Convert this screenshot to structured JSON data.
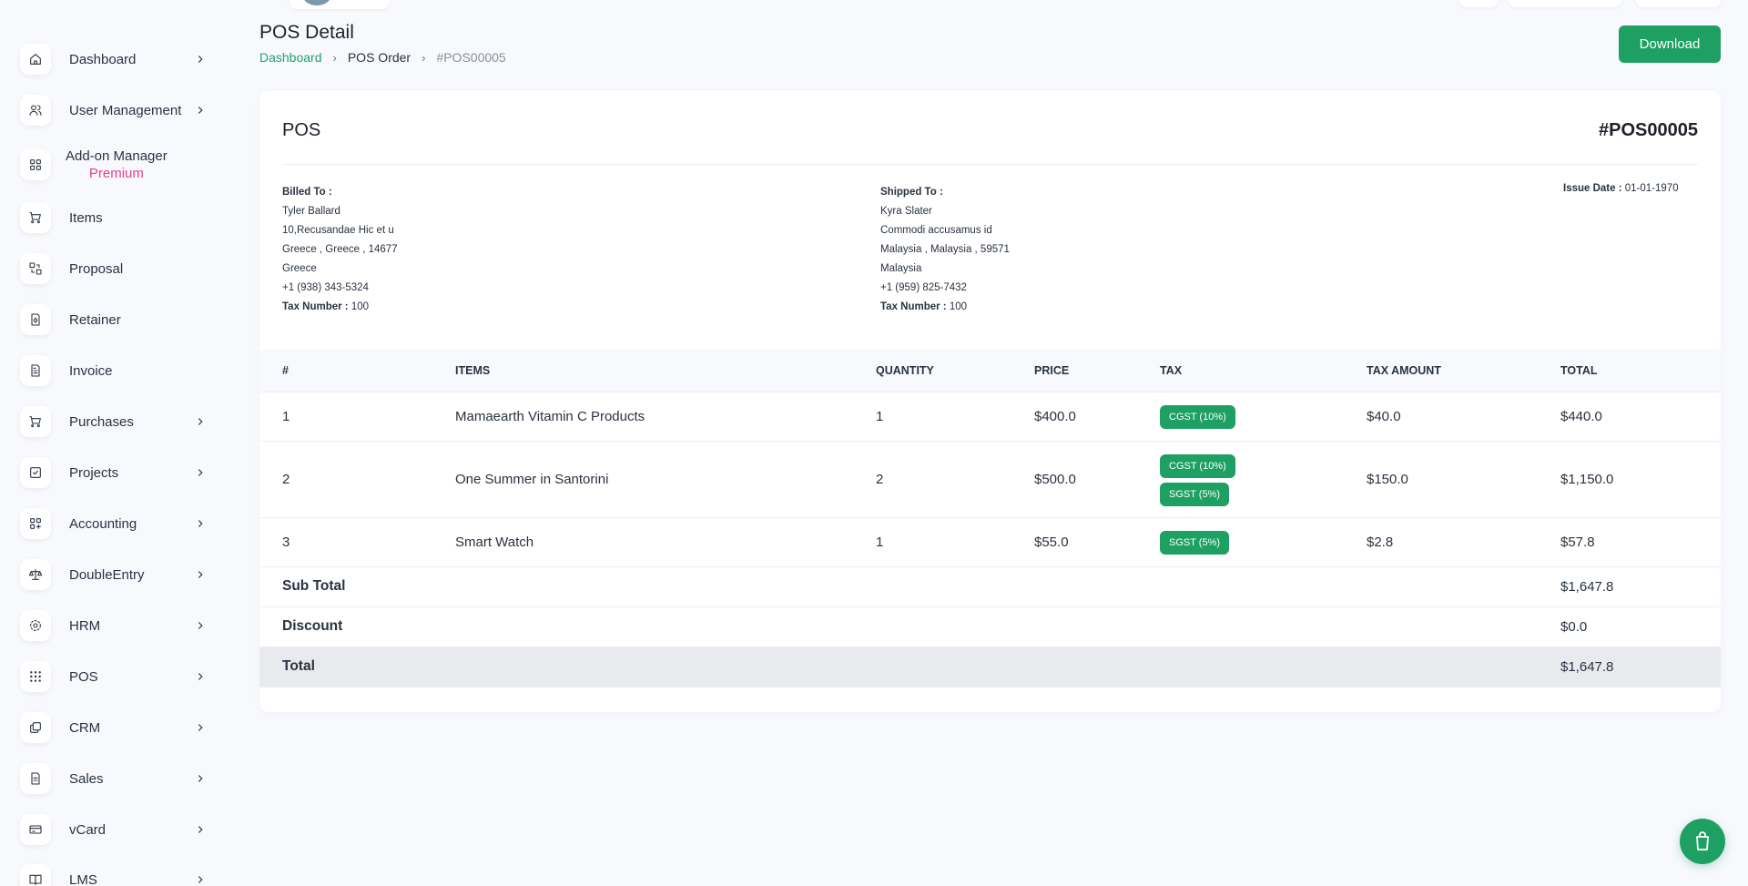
{
  "sidebar": {
    "items": [
      {
        "label": "Dashboard",
        "icon": "home-icon",
        "has_chevron": true
      },
      {
        "label": "User Management",
        "icon": "users-icon",
        "has_chevron": true
      },
      {
        "label": "Add-on Manager",
        "sublabel": "Premium",
        "icon": "apps-icon",
        "has_chevron": false
      },
      {
        "label": "Items",
        "icon": "cart-icon",
        "has_chevron": false
      },
      {
        "label": "Proposal",
        "icon": "proposal-icon",
        "has_chevron": false
      },
      {
        "label": "Retainer",
        "icon": "retainer-icon",
        "has_chevron": false
      },
      {
        "label": "Invoice",
        "icon": "invoice-icon",
        "has_chevron": false
      },
      {
        "label": "Purchases",
        "icon": "cart-icon",
        "has_chevron": true
      },
      {
        "label": "Projects",
        "icon": "checkbox-icon",
        "has_chevron": true
      },
      {
        "label": "Accounting",
        "icon": "apps-plus-icon",
        "has_chevron": true
      },
      {
        "label": "DoubleEntry",
        "icon": "scale-icon",
        "has_chevron": true
      },
      {
        "label": "HRM",
        "icon": "hrm-icon",
        "has_chevron": true
      },
      {
        "label": "POS",
        "icon": "grid-dots-icon",
        "has_chevron": true
      },
      {
        "label": "CRM",
        "icon": "layers-icon",
        "has_chevron": true
      },
      {
        "label": "Sales",
        "icon": "file-icon",
        "has_chevron": true
      },
      {
        "label": "vCard",
        "icon": "card-icon",
        "has_chevron": true
      },
      {
        "label": "LMS",
        "icon": "book-icon",
        "has_chevron": true
      }
    ]
  },
  "page": {
    "title": "POS Detail",
    "breadcrumb": {
      "home": "Dashboard",
      "mid": "POS Order",
      "current": "#POS00005"
    },
    "download_label": "Download"
  },
  "invoice": {
    "title": "POS",
    "number": "#POS00005",
    "billed": {
      "label": "Billed To :",
      "name": "Tyler Ballard",
      "address": "10,Recusandae Hic et u",
      "city_line": "Greece , Greece , 14677",
      "country": "Greece",
      "phone": "+1 (938) 343-5324",
      "tax_label": "Tax Number :",
      "tax_value": "100"
    },
    "shipped": {
      "label": "Shipped To :",
      "name": "Kyra Slater",
      "address": "Commodi accusamus id",
      "city_line": "Malaysia , Malaysia , 59571",
      "country": "Malaysia",
      "phone": "+1 (959) 825-7432",
      "tax_label": "Tax Number :",
      "tax_value": "100"
    },
    "issue_label": "Issue Date :",
    "issue_value": "01-01-1970"
  },
  "table": {
    "headers": {
      "num": "#",
      "items": "ITEMS",
      "qty": "QUANTITY",
      "price": "PRICE",
      "tax": "TAX",
      "tax_amount": "TAX AMOUNT",
      "total": "TOTAL"
    },
    "rows": [
      {
        "num": "1",
        "item": "Mamaearth Vitamin C Products",
        "qty": "1",
        "price": "$400.0",
        "taxes": [
          "CGST (10%)"
        ],
        "tax_amount": "$40.0",
        "total": "$440.0"
      },
      {
        "num": "2",
        "item": "One Summer in Santorini",
        "qty": "2",
        "price": "$500.0",
        "taxes": [
          "CGST (10%)",
          "SGST (5%)"
        ],
        "tax_amount": "$150.0",
        "total": "$1,150.0"
      },
      {
        "num": "3",
        "item": "Smart Watch",
        "qty": "1",
        "price": "$55.0",
        "taxes": [
          "SGST (5%)"
        ],
        "tax_amount": "$2.8",
        "total": "$57.8"
      }
    ],
    "summary": [
      {
        "label": "Sub Total",
        "value": "$1,647.8"
      },
      {
        "label": "Discount",
        "value": "$0.0"
      },
      {
        "label": "Total",
        "value": "$1,647.8"
      }
    ]
  },
  "colors": {
    "accent": "#1fa063",
    "premium": "#e83e8c",
    "text": "#293240"
  }
}
